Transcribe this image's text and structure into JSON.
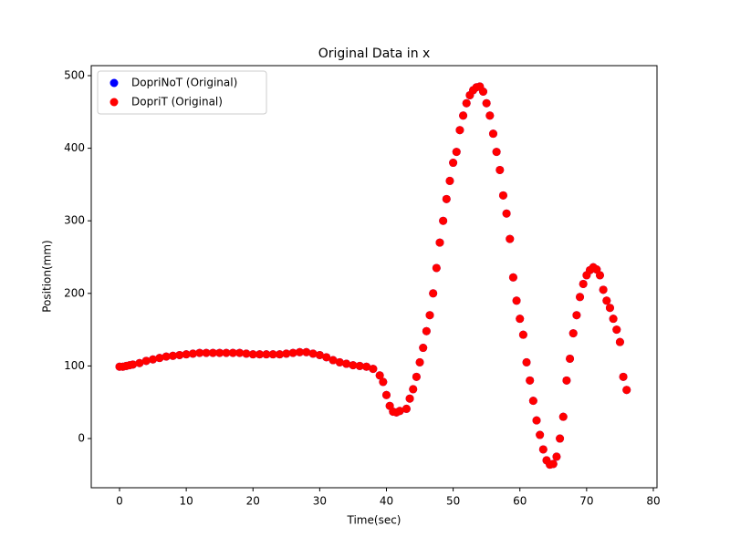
{
  "chart_data": {
    "type": "scatter",
    "title": "Original Data in x",
    "x_label": "Time(sec)",
    "y_label": "Position(mm)",
    "x": [
      0,
      0.5,
      1,
      1.5,
      2,
      3,
      4,
      5,
      6,
      7,
      8,
      9,
      10,
      11,
      12,
      13,
      14,
      15,
      16,
      17,
      18,
      19,
      20,
      21,
      22,
      23,
      24,
      25,
      26,
      27,
      28,
      29,
      30,
      31,
      32,
      33,
      34,
      35,
      36,
      37,
      38,
      39,
      39.5,
      40,
      40.5,
      41,
      41.5,
      42,
      43,
      43.5,
      44,
      44.5,
      45,
      45.5,
      46,
      46.5,
      47,
      47.5,
      48,
      48.5,
      49,
      49.5,
      50,
      50.5,
      51,
      51.5,
      52,
      52.5,
      53,
      53.5,
      54,
      54.5,
      55,
      55.5,
      56,
      56.5,
      57,
      57.5,
      58,
      58.5,
      59,
      59.5,
      60,
      60.5,
      61,
      61.5,
      62,
      62.5,
      63,
      63.5,
      64,
      64.5,
      65,
      65.5,
      66,
      66.5,
      67,
      67.5,
      68,
      68.5,
      69,
      69.5,
      70,
      70.5,
      71,
      71.5,
      72,
      72.5,
      73,
      73.5,
      74,
      74.5,
      75,
      75.5,
      76
    ],
    "series": [
      {
        "name": "DopriNoT (Original)",
        "color": "#0000ff",
        "values": [
          99,
          99,
          100,
          101,
          102,
          104,
          107,
          109,
          111,
          113,
          114,
          115,
          116,
          117,
          118,
          118,
          118,
          118,
          118,
          118,
          118,
          117,
          116,
          116,
          116,
          116,
          116,
          117,
          118,
          119,
          119,
          117,
          115,
          112,
          108,
          105,
          103,
          101,
          100,
          99,
          96,
          87,
          78,
          60,
          45,
          37,
          36,
          38,
          41,
          55,
          68,
          85,
          105,
          125,
          148,
          170,
          200,
          235,
          270,
          300,
          330,
          355,
          380,
          395,
          425,
          445,
          462,
          473,
          480,
          484,
          485,
          478,
          462,
          445,
          420,
          395,
          370,
          335,
          310,
          275,
          222,
          190,
          165,
          143,
          105,
          80,
          52,
          25,
          5,
          -15,
          -30,
          -36,
          -35,
          -25,
          0,
          30,
          80,
          110,
          145,
          170,
          195,
          213,
          225,
          232,
          236,
          233,
          225,
          205,
          190,
          180,
          165,
          150,
          133,
          85,
          67
        ]
      },
      {
        "name": "DopriT (Original)",
        "color": "#ff0000",
        "values": [
          99,
          99,
          100,
          101,
          102,
          104,
          107,
          109,
          111,
          113,
          114,
          115,
          116,
          117,
          118,
          118,
          118,
          118,
          118,
          118,
          118,
          117,
          116,
          116,
          116,
          116,
          116,
          117,
          118,
          119,
          119,
          117,
          115,
          112,
          108,
          105,
          103,
          101,
          100,
          99,
          96,
          87,
          78,
          60,
          45,
          37,
          36,
          38,
          41,
          55,
          68,
          85,
          105,
          125,
          148,
          170,
          200,
          235,
          270,
          300,
          330,
          355,
          380,
          395,
          425,
          445,
          462,
          473,
          480,
          484,
          485,
          478,
          462,
          445,
          420,
          395,
          370,
          335,
          310,
          275,
          222,
          190,
          165,
          143,
          105,
          80,
          52,
          25,
          5,
          -15,
          -30,
          -36,
          -35,
          -25,
          0,
          30,
          80,
          110,
          145,
          170,
          195,
          213,
          225,
          232,
          236,
          233,
          225,
          205,
          190,
          180,
          165,
          150,
          133,
          85,
          67
        ]
      }
    ],
    "xlim": [
      -4.24,
      80.55
    ],
    "ylim": [
      -67.8,
      513.8
    ],
    "xticks": [
      0,
      10,
      20,
      30,
      40,
      50,
      60,
      70,
      80
    ],
    "yticks": [
      0,
      100,
      200,
      300,
      400,
      500
    ],
    "legend": "upper left"
  }
}
